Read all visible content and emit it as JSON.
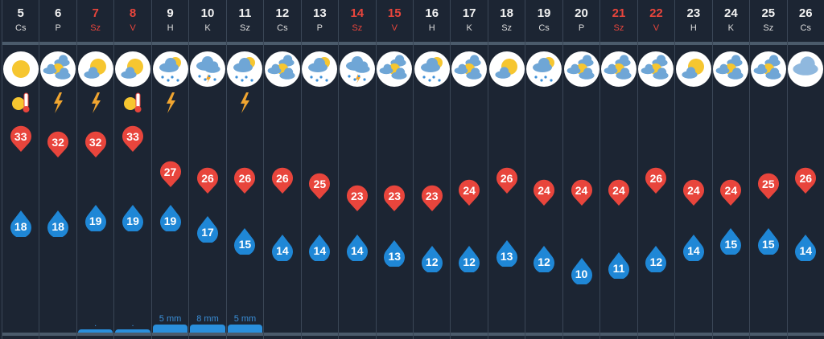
{
  "colors": {
    "high": "#e8453c",
    "low": "#1f87d6",
    "weekend": "#e8453c",
    "precip": "#2a8fdc"
  },
  "days": [
    {
      "day": "5",
      "weekday": "Cs",
      "weekend": false,
      "icon": "sunny",
      "warning": "heat-icon",
      "high": 33,
      "low": 18,
      "precip": ""
    },
    {
      "day": "6",
      "weekday": "P",
      "weekend": false,
      "icon": "partly-cloudy",
      "warning": "lightning-icon",
      "high": 32,
      "low": 18,
      "precip": ""
    },
    {
      "day": "7",
      "weekday": "Sz",
      "weekend": true,
      "icon": "sun-small-cloud",
      "warning": "lightning-icon",
      "high": 32,
      "low": 19,
      "precip": "."
    },
    {
      "day": "8",
      "weekday": "V",
      "weekend": true,
      "icon": "sun-small-cloud",
      "warning": "heat-icon",
      "high": 33,
      "low": 19,
      "precip": "."
    },
    {
      "day": "9",
      "weekday": "H",
      "weekend": false,
      "icon": "rain-sun",
      "warning": "lightning-icon",
      "high": 27,
      "low": 19,
      "precip": "5 mm"
    },
    {
      "day": "10",
      "weekday": "K",
      "weekend": false,
      "icon": "thunderstorm",
      "warning": "",
      "high": 26,
      "low": 17,
      "precip": "8 mm"
    },
    {
      "day": "11",
      "weekday": "Sz",
      "weekend": false,
      "icon": "rain-sun",
      "warning": "lightning-icon",
      "high": 26,
      "low": 15,
      "precip": "5 mm"
    },
    {
      "day": "12",
      "weekday": "Cs",
      "weekend": false,
      "icon": "partly-cloudy",
      "warning": "",
      "high": 26,
      "low": 14,
      "precip": ""
    },
    {
      "day": "13",
      "weekday": "P",
      "weekend": false,
      "icon": "rain-sun",
      "warning": "",
      "high": 25,
      "low": 14,
      "precip": ""
    },
    {
      "day": "14",
      "weekday": "Sz",
      "weekend": true,
      "icon": "thunderstorm",
      "warning": "",
      "high": 23,
      "low": 14,
      "precip": ""
    },
    {
      "day": "15",
      "weekday": "V",
      "weekend": true,
      "icon": "partly-cloudy",
      "warning": "",
      "high": 23,
      "low": 13,
      "precip": ""
    },
    {
      "day": "16",
      "weekday": "H",
      "weekend": false,
      "icon": "rain-sun",
      "warning": "",
      "high": 23,
      "low": 12,
      "precip": ""
    },
    {
      "day": "17",
      "weekday": "K",
      "weekend": false,
      "icon": "partly-cloudy",
      "warning": "",
      "high": 24,
      "low": 12,
      "precip": ""
    },
    {
      "day": "18",
      "weekday": "Sz",
      "weekend": false,
      "icon": "sun-small-cloud",
      "warning": "",
      "high": 26,
      "low": 13,
      "precip": ""
    },
    {
      "day": "19",
      "weekday": "Cs",
      "weekend": false,
      "icon": "rain-sun",
      "warning": "",
      "high": 24,
      "low": 12,
      "precip": ""
    },
    {
      "day": "20",
      "weekday": "P",
      "weekend": false,
      "icon": "partly-cloudy",
      "warning": "",
      "high": 24,
      "low": 10,
      "precip": ""
    },
    {
      "day": "21",
      "weekday": "Sz",
      "weekend": true,
      "icon": "partly-cloudy",
      "warning": "",
      "high": 24,
      "low": 11,
      "precip": ""
    },
    {
      "day": "22",
      "weekday": "V",
      "weekend": true,
      "icon": "partly-cloudy",
      "warning": "",
      "high": 26,
      "low": 12,
      "precip": ""
    },
    {
      "day": "23",
      "weekday": "H",
      "weekend": false,
      "icon": "sun-small-cloud",
      "warning": "",
      "high": 24,
      "low": 14,
      "precip": ""
    },
    {
      "day": "24",
      "weekday": "K",
      "weekend": false,
      "icon": "partly-cloudy",
      "warning": "",
      "high": 24,
      "low": 15,
      "precip": ""
    },
    {
      "day": "25",
      "weekday": "Sz",
      "weekend": false,
      "icon": "partly-cloudy",
      "warning": "",
      "high": 25,
      "low": 15,
      "precip": ""
    },
    {
      "day": "26",
      "weekday": "Cs",
      "weekend": false,
      "icon": "cloudy",
      "warning": "",
      "high": 26,
      "low": 14,
      "precip": ""
    }
  ]
}
